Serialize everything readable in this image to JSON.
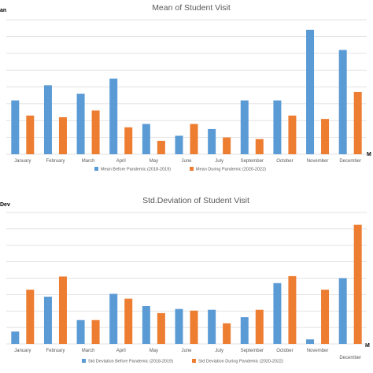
{
  "palette": {
    "before": "#5b9bd5",
    "during": "#ed7d31"
  },
  "chart_data": [
    {
      "type": "bar",
      "title": "Mean of Student Visit",
      "edge_left_label": "an",
      "edge_right_label": "M",
      "categories": [
        "January",
        "February",
        "March",
        "April",
        "May",
        "June",
        "July",
        "September",
        "October",
        "November",
        "December"
      ],
      "series": [
        {
          "name": "Mean Before Pandemic (2018-2019)",
          "values": [
            32,
            41,
            36,
            45,
            18,
            11,
            15,
            32,
            32,
            74,
            62
          ]
        },
        {
          "name": "Mean During Pandemic (2020-2022)",
          "values": [
            23,
            22,
            26,
            16,
            8,
            18,
            10,
            9,
            23,
            21,
            37
          ]
        }
      ],
      "ylim": [
        0,
        80
      ],
      "grid": true,
      "legend": "bottom"
    },
    {
      "type": "bar",
      "title": "Std.Deviation of Student Visit",
      "edge_left_label": "Dev",
      "edge_right_label": "M",
      "categories": [
        "January",
        "February",
        "March",
        "April",
        "May",
        "June",
        "July",
        "September",
        "October",
        "November",
        "December"
      ],
      "series": [
        {
          "name": "Std Deviation Before Pandemic (2018-2019)",
          "values": [
            3,
            11.5,
            5.8,
            12.2,
            9.2,
            8.5,
            8.3,
            6.5,
            14.8,
            1.1,
            16
          ]
        },
        {
          "name": "Std Deviation During Pandemic (2020-2022)",
          "values": [
            13.2,
            16.4,
            5.8,
            11,
            7.5,
            8.1,
            5,
            8.3,
            16.5,
            13.2,
            29
          ]
        }
      ],
      "ylim": [
        0,
        32
      ],
      "grid": true,
      "legend": "bottom"
    }
  ]
}
